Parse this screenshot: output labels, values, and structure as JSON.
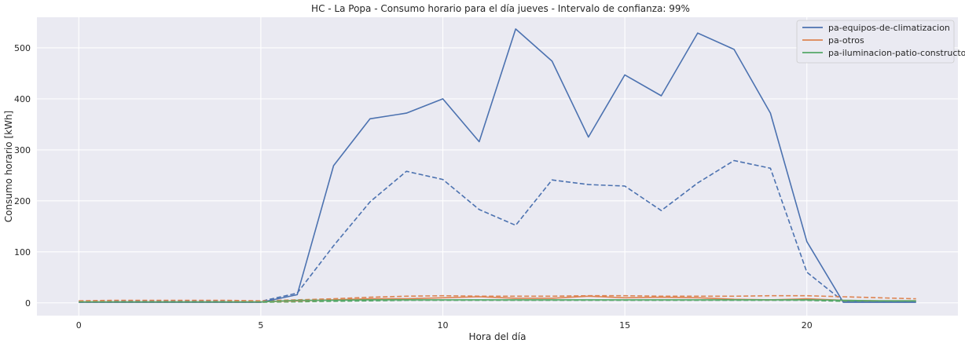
{
  "chart_data": {
    "type": "line",
    "title": "HC - La Popa - Consumo horario para el día jueves - Intervalo de confianza: 99%",
    "xlabel": "Hora del día",
    "ylabel": "Consumo horario [kWh]",
    "xlim": [
      -1.15,
      24.15
    ],
    "ylim": [
      -25,
      560
    ],
    "xticks": [
      0,
      5,
      10,
      15,
      20
    ],
    "yticks": [
      0,
      100,
      200,
      300,
      400,
      500
    ],
    "grid": true,
    "legend_position": "top-right",
    "x": [
      0,
      1,
      2,
      3,
      4,
      5,
      6,
      7,
      8,
      9,
      10,
      11,
      12,
      13,
      14,
      15,
      16,
      17,
      18,
      19,
      20,
      21,
      22,
      23
    ],
    "series": [
      {
        "name": "pa-equipos-de-climatizacion",
        "color": "#4c72b0",
        "style": "solid",
        "values": [
          1,
          1,
          1,
          1,
          1,
          1,
          16,
          269,
          361,
          372,
          400,
          316,
          537,
          474,
          325,
          447,
          406,
          529,
          497,
          372,
          120,
          1,
          1,
          1
        ]
      },
      {
        "name": "pa-otros",
        "color": "#dd8452",
        "style": "solid",
        "values": [
          2,
          2,
          2,
          2,
          2,
          2,
          4,
          6,
          8,
          8,
          10,
          12,
          9,
          9,
          13,
          10,
          11,
          10,
          7,
          6,
          8,
          5,
          4,
          4
        ]
      },
      {
        "name": "pa-iluminacion-patio-constructor",
        "color": "#55a868",
        "style": "solid",
        "values": [
          2,
          2,
          2,
          2,
          2,
          2,
          5,
          5,
          6,
          6,
          6,
          6,
          6,
          6,
          6,
          6,
          6,
          6,
          6,
          6,
          6,
          5,
          4,
          4
        ]
      },
      {
        "name": "",
        "color": "#4c72b0",
        "style": "dashed",
        "values": [
          3,
          3,
          3,
          3,
          3,
          3,
          19,
          112,
          198,
          258,
          242,
          183,
          152,
          241,
          232,
          229,
          181,
          235,
          279,
          264,
          60,
          3,
          3,
          3
        ]
      },
      {
        "name": "",
        "color": "#dd8452",
        "style": "dashed",
        "values": [
          4,
          5,
          5,
          5,
          5,
          4,
          6,
          8,
          11,
          13,
          14,
          13,
          13,
          13,
          14,
          14,
          13,
          13,
          13,
          14,
          14,
          12,
          10,
          8
        ]
      },
      {
        "name": "",
        "color": "#55a868",
        "style": "dashed",
        "values": [
          1,
          1,
          1,
          1,
          1,
          1,
          2,
          3,
          4,
          5,
          5,
          5,
          5,
          5,
          5,
          5,
          5,
          5,
          5,
          5,
          5,
          3,
          2,
          2
        ]
      }
    ]
  }
}
